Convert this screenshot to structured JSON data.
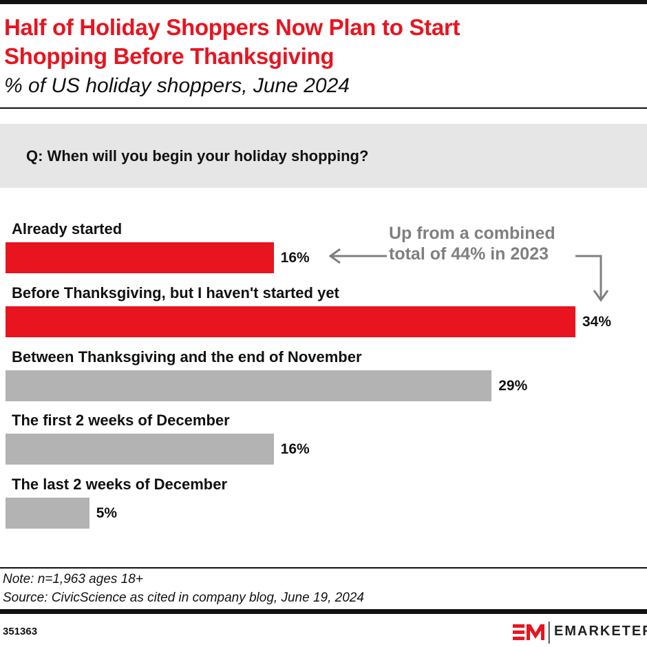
{
  "header": {
    "title_line1": "Half of Holiday Shoppers Now Plan to Start",
    "title_line2": "Shopping Before Thanksgiving",
    "subtitle": "% of US holiday shoppers, June 2024"
  },
  "question": "Q: When will you begin your holiday shopping?",
  "annotation": {
    "line1": "Up from a combined",
    "line2": "total of 44% in 2023"
  },
  "chart_data": {
    "type": "bar",
    "orientation": "horizontal",
    "categories": [
      "Already started",
      "Before Thanksgiving, but I haven't started yet",
      "Between Thanksgiving and the end of November",
      "The first 2 weeks of December",
      "The last 2 weeks of December"
    ],
    "values": [
      16,
      34,
      29,
      16,
      5
    ],
    "value_labels": [
      "16%",
      "34%",
      "29%",
      "16%",
      "5%"
    ],
    "colors": [
      "#e8141f",
      "#e8141f",
      "#b3b3b3",
      "#b3b3b3",
      "#b3b3b3"
    ],
    "grid": false,
    "unit": "%"
  },
  "footer": {
    "note": "Note: n=1,963 ages 18+",
    "source": "Source: CivicScience as cited in company blog, June 19, 2024",
    "chart_id": "351363",
    "brand": "EMARKETER"
  }
}
